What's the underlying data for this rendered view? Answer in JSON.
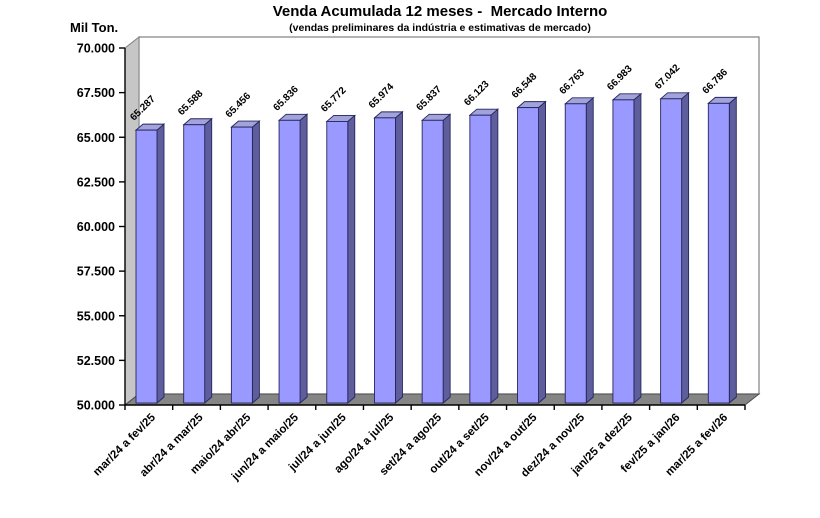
{
  "chart_data": {
    "type": "bar",
    "title": "Venda Acumulada 12 meses -  Mercado Interno",
    "subtitle": "(vendas preliminares da indústria e estimativas de mercado)",
    "unit_label": "Mil Ton.",
    "categories": [
      "mar/24 a fev/25",
      "abr/24 a mar/25",
      "maio/24 abr/25",
      "jun/24 a maio/25",
      "jul/24 a jun/25",
      "ago/24 a jul/25",
      "set/24 a ago/25",
      "out/24 a set/25",
      "nov/24 a out/25",
      "dez/24 a nov/25",
      "jan/25 a dez/25",
      "fev/25 a jan/26",
      "mar/25 a fev/26"
    ],
    "values": [
      65287,
      65588,
      65456,
      65836,
      65772,
      65974,
      65837,
      66123,
      66548,
      66763,
      66983,
      67042,
      66786
    ],
    "value_labels": [
      "65.287",
      "65.588",
      "65.456",
      "65.836",
      "65.772",
      "65.974",
      "65.837",
      "66.123",
      "66.548",
      "66.763",
      "66.983",
      "67.042",
      "66.786"
    ],
    "ylim": [
      50000,
      70000
    ],
    "ytick_step": 2500,
    "ytick_labels": [
      "70.000",
      "67.500",
      "65.000",
      "62.500",
      "60.000",
      "57.500",
      "55.000",
      "52.500",
      "50.000"
    ],
    "grid": false,
    "legend": "none",
    "style_3d": true,
    "colors": {
      "bar_front": "#9999FF",
      "bar_top": "#A3A3DC",
      "bar_side": "#5E5E9C",
      "bar_outline": "#26265E",
      "floor": "#858585",
      "floor_border": "#4d4d4d",
      "wall_side": "#C6C6C6",
      "wall_border": "#808080",
      "back_wall": "#FFFFFF",
      "axis": "#000000",
      "text": "#000000"
    }
  }
}
